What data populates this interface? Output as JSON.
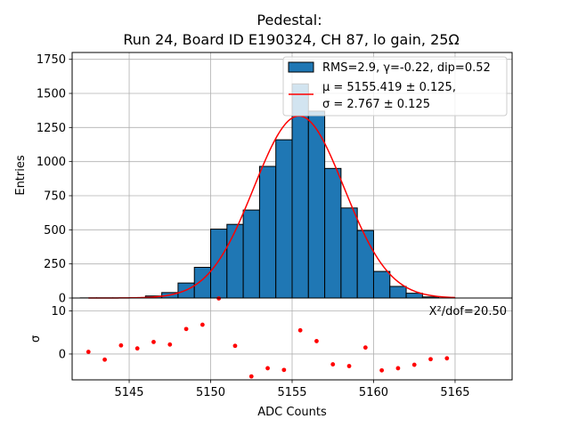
{
  "chart_data": [
    {
      "type": "bar",
      "panel": "histogram",
      "title_line1": "Pedestal:",
      "title_line2": "Run 24, Board ID E190324, CH 87, lo gain, 25Ω",
      "xlabel": "ADC Counts",
      "ylabel": "Entries",
      "xlim": [
        5141.5,
        5168.5
      ],
      "ylim": [
        0,
        1800
      ],
      "x_ticks": [
        5145,
        5150,
        5155,
        5160,
        5165
      ],
      "y_ticks": [
        0,
        250,
        500,
        750,
        1000,
        1250,
        1500,
        1750
      ],
      "grid": true,
      "bin_width": 1,
      "bin_left_edges": [
        5142,
        5143,
        5144,
        5145,
        5146,
        5147,
        5148,
        5149,
        5150,
        5151,
        5152,
        5153,
        5154,
        5155,
        5156,
        5157,
        5158,
        5159,
        5160,
        5161,
        5162,
        5163,
        5164
      ],
      "counts": [
        1,
        1,
        1,
        2,
        15,
        40,
        110,
        225,
        505,
        540,
        645,
        965,
        1160,
        1570,
        1370,
        950,
        660,
        495,
        195,
        85,
        35,
        8,
        1
      ],
      "bar_color": "#1f77b4",
      "fit": {
        "color": "#ff0000",
        "mu": 5155.419,
        "sigma": 2.767,
        "amplitude": 1335,
        "x_range": [
          5142.5,
          5165
        ]
      },
      "legend": {
        "location": "top-right",
        "entries": [
          {
            "label": "RMS=2.9, γ=-0.22, dip=0.52",
            "kind": "patch"
          },
          {
            "label_line1": "μ = 5155.419 ± 0.125,",
            "label_line2": "σ = 2.767 ± 0.125",
            "kind": "line"
          }
        ]
      }
    },
    {
      "type": "scatter",
      "panel": "residuals",
      "xlabel": "ADC Counts",
      "ylabel": "σ",
      "xlim": [
        5141.5,
        5168.5
      ],
      "ylim": [
        -6,
        13
      ],
      "x_ticks": [
        5145,
        5150,
        5155,
        5160,
        5165
      ],
      "y_ticks": [
        0,
        10
      ],
      "grid": true,
      "marker_color": "#ff0000",
      "annotation": "X²/dof=20.50",
      "x": [
        5142.5,
        5143.5,
        5144.5,
        5145.5,
        5146.5,
        5147.5,
        5148.5,
        5149.5,
        5150.5,
        5151.5,
        5152.5,
        5153.5,
        5154.5,
        5155.5,
        5156.5,
        5157.5,
        5158.5,
        5159.5,
        5160.5,
        5161.5,
        5162.5,
        5163.5,
        5164.5
      ],
      "y": [
        0.5,
        -1.3,
        2.0,
        1.3,
        2.8,
        2.2,
        5.8,
        6.8,
        12.9,
        1.9,
        -5.2,
        -3.3,
        -3.7,
        5.5,
        3.0,
        -2.4,
        -2.8,
        1.5,
        -3.8,
        -3.3,
        -2.5,
        -1.2,
        -1.0
      ]
    }
  ]
}
